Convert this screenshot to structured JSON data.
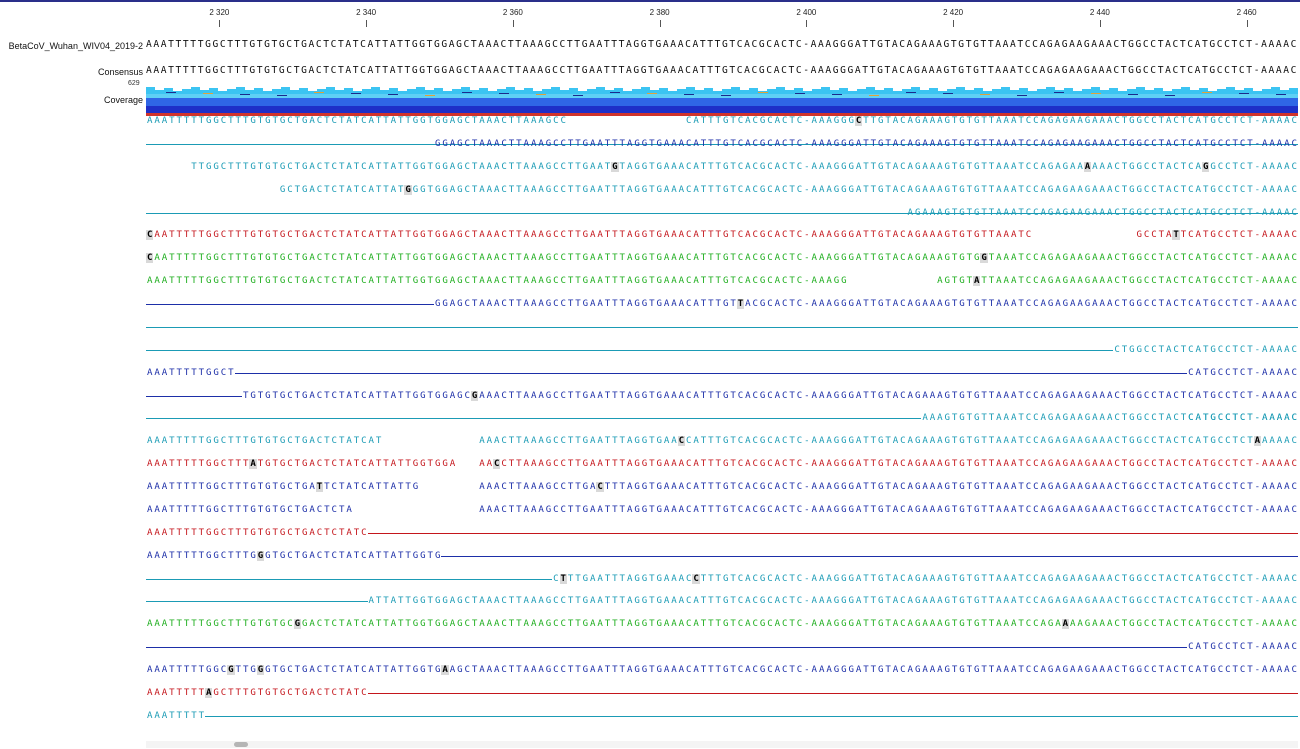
{
  "ruler": {
    "ticks": [
      "2 320",
      "2 340",
      "2 360",
      "2 380",
      "2 400",
      "2 420",
      "2 440",
      "2 460"
    ],
    "tick_positions": [
      2320,
      2340,
      2360,
      2380,
      2400,
      2420,
      2440,
      2460
    ],
    "start_position": 2310,
    "end_position": 2467
  },
  "reference": {
    "name": "BetaCoV_Wuhan_WIV04_2019-2",
    "sequence": "AAATTTTTGGCTTTGTGTGCTGACTCTATCATTATTGGTGGAGCTAAACTTAAAGCCTTGAATTTAGGTGAAACATTTGTCACGCACTC-AAAGGGATTGTACAGAAAGTGTGTTAAATCCAGAGAAGAAACTGGCCTACTCATGCCTCT-AAAAC"
  },
  "consensus": {
    "label": "Consensus",
    "sequence": "AAATTTTTGGCTTTGTGTGCTGACTCTATCATTATTGGTGGAGCTAAACTTAAAGCCTTGAATTTAGGTGAAACATTTGTCACGCACTC-AAAGGGATTGTACAGAAAGTGTGTTAAATCCAGAGAAGAAACTGGCCTACTCATGCCTCT-AAAAC"
  },
  "coverage": {
    "label": "Coverage",
    "max_value": "629",
    "colors": {
      "top": "#3bc4f2",
      "mid": "#2f66e6",
      "base": "#1e2fc8",
      "error": "#d0342c"
    }
  },
  "read_colors": {
    "forward_teal": "#1b9bb5",
    "reverse_blue": "#1d2fa8",
    "red": "#c4161c",
    "green": "#1fae1f",
    "light_green": "#8fe28f",
    "pink": "#f0a0a0",
    "light_blue": "#8fb6d8",
    "mismatch_bg": "#d9d9d9"
  },
  "reads": [
    {
      "row": 0,
      "start": 0,
      "end": 157,
      "color": "forward_teal",
      "gap_from": 57,
      "gap_to": 73,
      "mismatches": [
        96
      ]
    },
    {
      "row": 1,
      "start": 0,
      "end": 157,
      "color": "forward_teal",
      "line_only": true
    },
    {
      "row": 1,
      "start": 39,
      "end": 157,
      "color": "reverse_blue"
    },
    {
      "row": 2,
      "start": 6,
      "end": 157,
      "color": "forward_teal",
      "mismatches": [
        63,
        127,
        143
      ]
    },
    {
      "row": 3,
      "start": 18,
      "end": 157,
      "color": "forward_teal",
      "mismatches": [
        35
      ]
    },
    {
      "row": 4,
      "start": 0,
      "end": 157,
      "color": "forward_teal",
      "line_only": true
    },
    {
      "row": 4,
      "start": 103,
      "end": 157,
      "color": "forward_teal"
    },
    {
      "row": 5,
      "start": 0,
      "end": 157,
      "color": "red",
      "gap_from": 120,
      "gap_to": 134,
      "mismatches": [
        0,
        139
      ]
    },
    {
      "row": 6,
      "start": 0,
      "end": 157,
      "color": "green",
      "mismatches": [
        0,
        113
      ]
    },
    {
      "row": 7,
      "start": 0,
      "end": 157,
      "color": "green",
      "gap_from": 95,
      "gap_to": 107,
      "mismatches": [
        112
      ]
    },
    {
      "row": 8,
      "start": 0,
      "end": 157,
      "color": "reverse_blue",
      "line_only_before": 39,
      "mismatches": [
        80
      ]
    },
    {
      "row": 9,
      "start": 0,
      "end": 157,
      "color": "forward_teal",
      "line_only": true
    },
    {
      "row": 10,
      "start": 0,
      "end": 157,
      "color": "forward_teal",
      "line_only_before": 131
    },
    {
      "row": 11,
      "start": 0,
      "end": 157,
      "color": "reverse_blue",
      "gap_from": 12,
      "gap_to": 157,
      "tail_from": 141
    },
    {
      "row": 12,
      "start": 0,
      "end": 157,
      "color": "reverse_blue",
      "line_only_before": 13,
      "mismatches": [
        44
      ]
    },
    {
      "row": 13,
      "start": 0,
      "end": 157,
      "color": "forward_teal",
      "line_only_before": 105
    },
    {
      "row": 13,
      "start": 141,
      "end": 157,
      "color": "forward_teal"
    },
    {
      "row": 14,
      "start": 0,
      "end": 157,
      "color": "forward_teal",
      "gap_from": 32,
      "gap_to": 45,
      "mismatches": [
        72,
        150
      ]
    },
    {
      "row": 15,
      "start": 0,
      "end": 157,
      "color": "red",
      "gap_from": 42,
      "gap_to": 45,
      "mismatches": [
        14,
        47
      ]
    },
    {
      "row": 16,
      "start": 0,
      "end": 157,
      "color": "reverse_blue",
      "gap_from": 37,
      "gap_to": 45,
      "mismatches": [
        23,
        61
      ]
    },
    {
      "row": 17,
      "start": 0,
      "end": 157,
      "color": "reverse_blue",
      "gap_from": 28,
      "gap_to": 45
    },
    {
      "row": 18,
      "start": 0,
      "end": 157,
      "color": "red",
      "gap_from": 30,
      "gap_to": 157
    },
    {
      "row": 19,
      "start": 0,
      "end": 157,
      "color": "reverse_blue",
      "gap_from": 40,
      "gap_to": 157,
      "mismatches": [
        15
      ]
    },
    {
      "row": 20,
      "start": 0,
      "end": 157,
      "color": "forward_teal",
      "line_only_before": 55,
      "mismatches": [
        56,
        74
      ]
    },
    {
      "row": 21,
      "start": 0,
      "end": 157,
      "color": "forward_teal",
      "line_only_before": 30
    },
    {
      "row": 22,
      "start": 0,
      "end": 157,
      "color": "green",
      "mismatches": [
        20,
        124
      ]
    },
    {
      "row": 23,
      "start": 0,
      "end": 157,
      "color": "reverse_blue",
      "line_only_before": 141
    },
    {
      "row": 24,
      "start": 0,
      "end": 157,
      "color": "reverse_blue",
      "mismatches": [
        11,
        15,
        40
      ]
    },
    {
      "row": 25,
      "start": 0,
      "end": 157,
      "color": "red",
      "gap_from": 30,
      "gap_to": 157,
      "mismatches": [
        8,
        52
      ]
    },
    {
      "row": 26,
      "start": 0,
      "end": 157,
      "color": "forward_teal",
      "gap_from": 8,
      "gap_to": 157
    }
  ],
  "scrollbar": {
    "label": "horizontal-scroll"
  }
}
